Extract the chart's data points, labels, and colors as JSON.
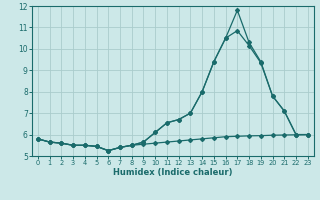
{
  "title": "",
  "xlabel": "Humidex (Indice chaleur)",
  "ylabel": "",
  "bg_color": "#cce8e8",
  "grid_color": "#aacccc",
  "line_color": "#1a6b6b",
  "xlim": [
    -0.5,
    23.5
  ],
  "ylim": [
    5,
    12
  ],
  "yticks": [
    5,
    6,
    7,
    8,
    9,
    10,
    11,
    12
  ],
  "xticks": [
    0,
    1,
    2,
    3,
    4,
    5,
    6,
    7,
    8,
    9,
    10,
    11,
    12,
    13,
    14,
    15,
    16,
    17,
    18,
    19,
    20,
    21,
    22,
    23
  ],
  "series": [
    {
      "x": [
        0,
        1,
        2,
        3,
        4,
        5,
        6,
        7,
        8,
        9,
        10,
        11,
        12,
        13,
        14,
        15,
        16,
        17,
        18,
        19,
        20,
        21,
        22,
        23
      ],
      "y": [
        5.8,
        5.65,
        5.6,
        5.5,
        5.5,
        5.45,
        5.25,
        5.4,
        5.5,
        5.55,
        5.6,
        5.65,
        5.7,
        5.75,
        5.8,
        5.85,
        5.9,
        5.92,
        5.94,
        5.95,
        5.97,
        5.98,
        5.99,
        6.0
      ]
    },
    {
      "x": [
        0,
        1,
        2,
        3,
        4,
        5,
        6,
        7,
        8,
        9,
        10,
        11,
        12,
        13,
        14,
        15,
        16,
        17,
        18,
        19,
        20,
        21,
        22,
        23
      ],
      "y": [
        5.8,
        5.65,
        5.6,
        5.5,
        5.5,
        5.45,
        5.25,
        5.4,
        5.5,
        5.65,
        6.1,
        6.55,
        6.7,
        7.0,
        8.0,
        9.4,
        10.5,
        11.8,
        10.3,
        9.4,
        7.8,
        7.1,
        6.0,
        6.0
      ]
    },
    {
      "x": [
        0,
        1,
        2,
        3,
        4,
        5,
        6,
        7,
        8,
        9,
        10,
        11,
        12,
        13,
        14,
        15,
        16,
        17,
        18,
        19,
        20,
        21,
        22,
        23
      ],
      "y": [
        5.8,
        5.65,
        5.6,
        5.5,
        5.5,
        5.45,
        5.25,
        5.4,
        5.5,
        5.65,
        6.1,
        6.55,
        6.7,
        7.0,
        8.0,
        9.4,
        10.5,
        10.85,
        10.15,
        9.35,
        7.8,
        7.1,
        6.0,
        6.0
      ]
    }
  ]
}
